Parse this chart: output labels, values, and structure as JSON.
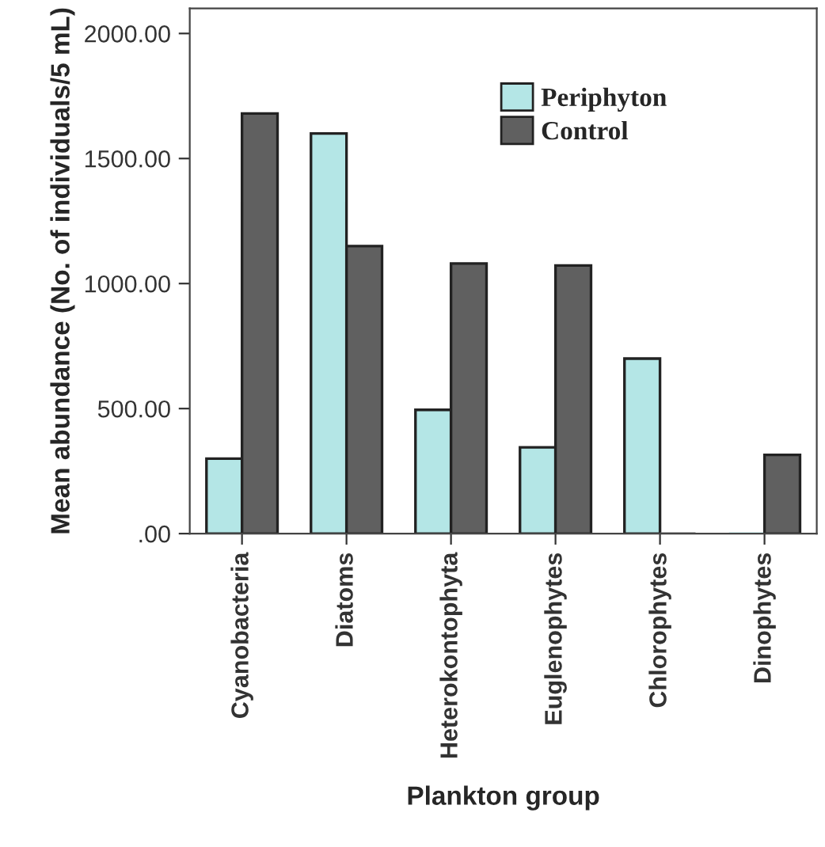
{
  "chart_data": {
    "type": "bar",
    "xlabel": "Plankton group",
    "ylabel": "Mean abundance (No. of individuals/5 mL)",
    "categories": [
      "Cyanobacteria",
      "Diatoms",
      "Heterokontophyta",
      "Euglenophytes",
      "Chlorophytes",
      "Dinophytes"
    ],
    "series": [
      {
        "name": "Periphyton",
        "color": "#b4e6e6",
        "values": [
          300,
          1600,
          495,
          345,
          700,
          0
        ]
      },
      {
        "name": "Control",
        "color": "#606060",
        "values": [
          1680,
          1150,
          1080,
          1072,
          0,
          315
        ]
      }
    ],
    "ylim": [
      0,
      2100
    ],
    "yticks": [
      {
        "value": 0,
        "label": ".00"
      },
      {
        "value": 500,
        "label": "500.00"
      },
      {
        "value": 1000,
        "label": "1000.00"
      },
      {
        "value": 1500,
        "label": "1500.00"
      },
      {
        "value": 2000,
        "label": "2000.00"
      }
    ],
    "legend": "top right",
    "grid": false
  }
}
